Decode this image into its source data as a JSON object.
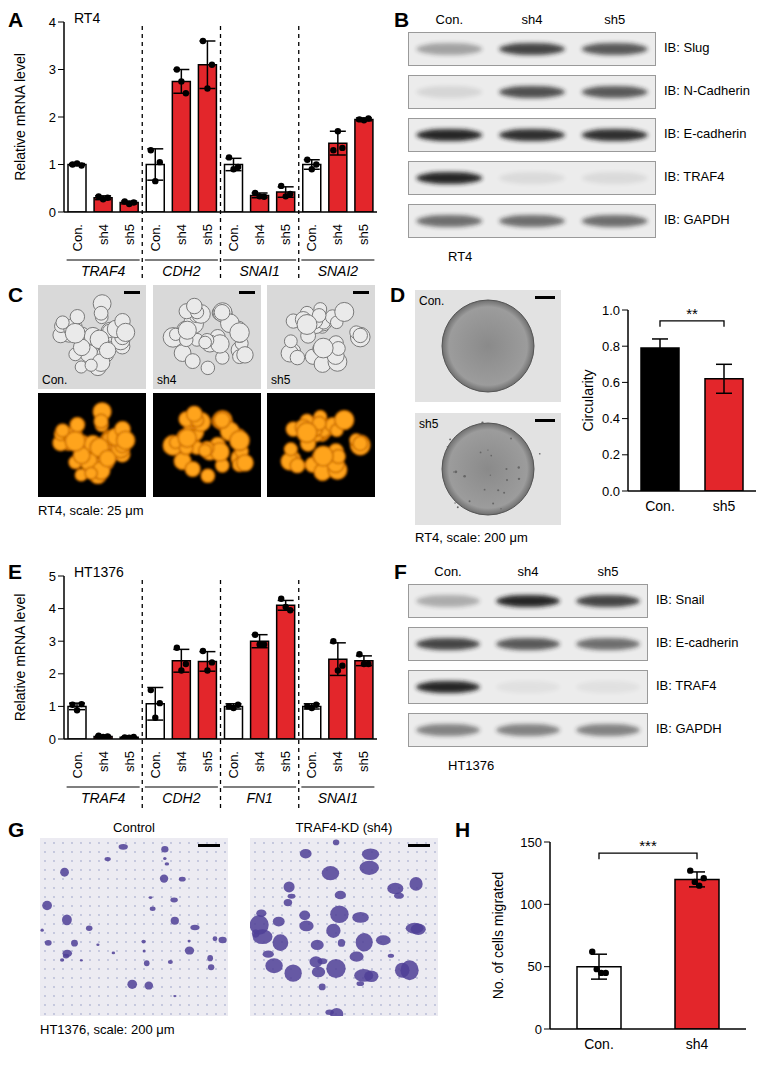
{
  "chart_data": [
    {
      "panel": "A",
      "type": "bar",
      "title": "RT4",
      "y_label": "Relative mRNA level",
      "groups": [
        "TRAF4",
        "CDH2",
        "SNAI1",
        "SNAI2"
      ],
      "categories": [
        "Con.",
        "sh4",
        "sh5",
        "Con.",
        "sh4",
        "sh5",
        "Con.",
        "sh4",
        "sh5",
        "Con.",
        "sh4",
        "sh5"
      ],
      "values": [
        1.0,
        0.3,
        0.2,
        1.0,
        2.75,
        3.1,
        1.0,
        0.35,
        0.42,
        1.0,
        1.45,
        1.95
      ],
      "errors": [
        0.02,
        0.04,
        0.03,
        0.33,
        0.25,
        0.5,
        0.13,
        0.05,
        0.11,
        0.1,
        0.25,
        0.03
      ],
      "points": [
        [
          1.0,
          1.02,
          0.98
        ],
        [
          0.33,
          0.27,
          0.3
        ],
        [
          0.22,
          0.17,
          0.2
        ],
        [
          1.3,
          0.65,
          1.05
        ],
        [
          3.0,
          2.75,
          2.5
        ],
        [
          3.6,
          2.6,
          3.1
        ],
        [
          1.15,
          0.9,
          0.95
        ],
        [
          0.4,
          0.33,
          0.32
        ],
        [
          0.55,
          0.33,
          0.38
        ],
        [
          1.1,
          0.9,
          1.0
        ],
        [
          1.3,
          1.7,
          1.35
        ],
        [
          1.95,
          1.93,
          1.97
        ]
      ],
      "colors": [
        "#ffffff",
        "#e3262b",
        "#e3262b",
        "#ffffff",
        "#e3262b",
        "#e3262b",
        "#ffffff",
        "#e3262b",
        "#e3262b",
        "#ffffff",
        "#e3262b",
        "#e3262b"
      ],
      "ylim": [
        0,
        4
      ],
      "yticks": [
        0,
        1,
        2,
        3,
        4
      ]
    },
    {
      "type": "bar",
      "y_label": "Circularity",
      "categories": [
        "Con.",
        "sh5"
      ],
      "values": [
        0.79,
        0.62
      ],
      "errors": [
        0.05,
        0.08
      ],
      "colors": [
        "#000000",
        "#e3262b"
      ],
      "ylim": [
        0,
        1
      ],
      "yticks": [
        {
          "value": 0,
          "label": "0.0"
        },
        0.2,
        0.4,
        0.6,
        0.8,
        {
          "value": 1,
          "label": "1.0"
        }
      ],
      "significance": "**"
    },
    {
      "panel": "E",
      "type": "bar",
      "title": "HT1376",
      "y_label": "Relative mRNA level",
      "groups": [
        "TRAF4",
        "CDH2",
        "FN1",
        "SNAI1"
      ],
      "categories": [
        "Con.",
        "sh4",
        "sh5",
        "Con.",
        "sh4",
        "sh5",
        "Con.",
        "sh4",
        "sh5",
        "Con.",
        "sh4",
        "sh5"
      ],
      "values": [
        1.0,
        0.08,
        0.05,
        1.08,
        2.4,
        2.38,
        1.0,
        3.0,
        4.1,
        1.0,
        2.45,
        2.4
      ],
      "errors": [
        0.1,
        0.03,
        0.02,
        0.5,
        0.35,
        0.3,
        0.08,
        0.2,
        0.15,
        0.08,
        0.5,
        0.15
      ],
      "points": [
        [
          1.05,
          0.88,
          1.07
        ],
        [
          0.1,
          0.06,
          0.08
        ],
        [
          0.05,
          0.04,
          0.06
        ],
        [
          1.5,
          0.65,
          1.1
        ],
        [
          2.8,
          2.1,
          2.3
        ],
        [
          2.7,
          2.1,
          2.35
        ],
        [
          1.0,
          0.95,
          1.05
        ],
        [
          3.2,
          2.9,
          2.9
        ],
        [
          4.3,
          4.05,
          3.95
        ],
        [
          1.0,
          0.95,
          1.05
        ],
        [
          3.0,
          2.1,
          2.25
        ],
        [
          2.6,
          2.3,
          2.3
        ]
      ],
      "colors": [
        "#ffffff",
        "#e3262b",
        "#e3262b",
        "#ffffff",
        "#e3262b",
        "#e3262b",
        "#ffffff",
        "#e3262b",
        "#e3262b",
        "#ffffff",
        "#e3262b",
        "#e3262b"
      ],
      "ylim": [
        0,
        5
      ],
      "yticks": [
        0,
        1,
        2,
        3,
        4,
        5
      ]
    },
    {
      "panel": "H",
      "type": "bar",
      "y_label": "No. of cells migrated",
      "categories": [
        "Con.",
        "sh4"
      ],
      "values": [
        50,
        120
      ],
      "errors": [
        10,
        6
      ],
      "points": [
        [
          62,
          48,
          45,
          45
        ],
        [
          127,
          118,
          115,
          121
        ]
      ],
      "colors": [
        "#ffffff",
        "#e3262b"
      ],
      "ylim": [
        0,
        150
      ],
      "yticks": [
        0,
        50,
        100,
        150
      ],
      "significance": "***"
    }
  ],
  "blots": [
    {
      "panel": "B",
      "lanes": [
        "Con.",
        "sh4",
        "sh5"
      ],
      "rows": [
        "IB: Slug",
        "IB: N-Cadherin",
        "IB: E-cadherin",
        "IB: TRAF4",
        "IB: GAPDH"
      ],
      "caption": "RT4"
    },
    {
      "panel": "F",
      "lanes": [
        "Con.",
        "sh4",
        "sh5"
      ],
      "rows": [
        "IB: Snail",
        "IB: E-cadherin",
        "IB: TRAF4",
        "IB: GAPDH"
      ],
      "caption": "HT1376"
    }
  ],
  "images": [
    {
      "panel": "C",
      "labels": [
        "Con.",
        "sh4",
        "sh5"
      ],
      "caption": "RT4, scale: 25 μm"
    },
    {
      "panel": "D",
      "labels": [
        "Con.",
        "sh5"
      ],
      "caption": "RT4, scale: 200 μm"
    },
    {
      "panel": "G",
      "labels": [
        "Control",
        "TRAF4-KD (sh4)"
      ],
      "caption": "HT1376, scale: 200 μm"
    }
  ]
}
